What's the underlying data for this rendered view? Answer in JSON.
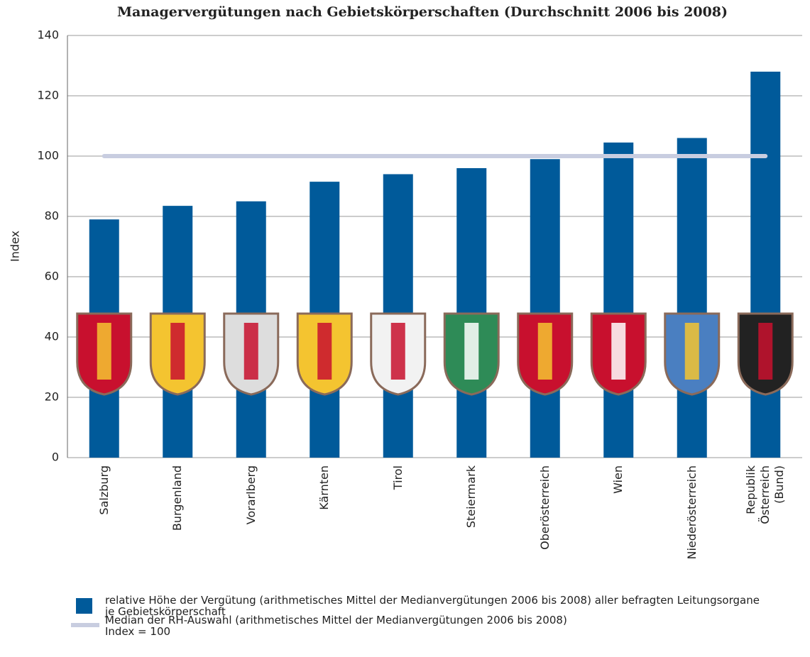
{
  "chart_data": {
    "type": "bar",
    "title": "Managervergütungen nach Gebietskörperschaften (Durchschnitt 2006 bis 2008)",
    "y_label": "Index",
    "categories": [
      "Salzburg",
      "Burgenland",
      "Vorarlberg",
      "Kärnten",
      "Tirol",
      "Steiermark",
      "Oberösterreich",
      "Wien",
      "Niederösterreich",
      "Republik Österreich\n(Bund)"
    ],
    "series": [
      {
        "type": "bar",
        "name": "relative Höhe der Vergütung (arithmetisches Mittel der Medianvergütungen 2006 bis 2008) aller befragten Leitungsorgane\nje Gebietskörperschaft",
        "color": "#005a9a",
        "values": [
          79,
          83.5,
          85,
          91.5,
          94,
          96,
          99,
          104.5,
          106,
          128
        ]
      },
      {
        "type": "line",
        "name": "Median der RH-Auswahl (arithmetisches Mittel der Medianvergütungen 2006 bis 2008)\nIndex = 100",
        "color": "#c8cde0",
        "values": [
          100,
          100,
          100,
          100,
          100,
          100,
          100,
          100,
          100,
          100
        ]
      }
    ],
    "ylim": [
      0,
      140
    ],
    "yticks": [
      0,
      20,
      40,
      60,
      80,
      100,
      120,
      140
    ],
    "grid": true
  }
}
